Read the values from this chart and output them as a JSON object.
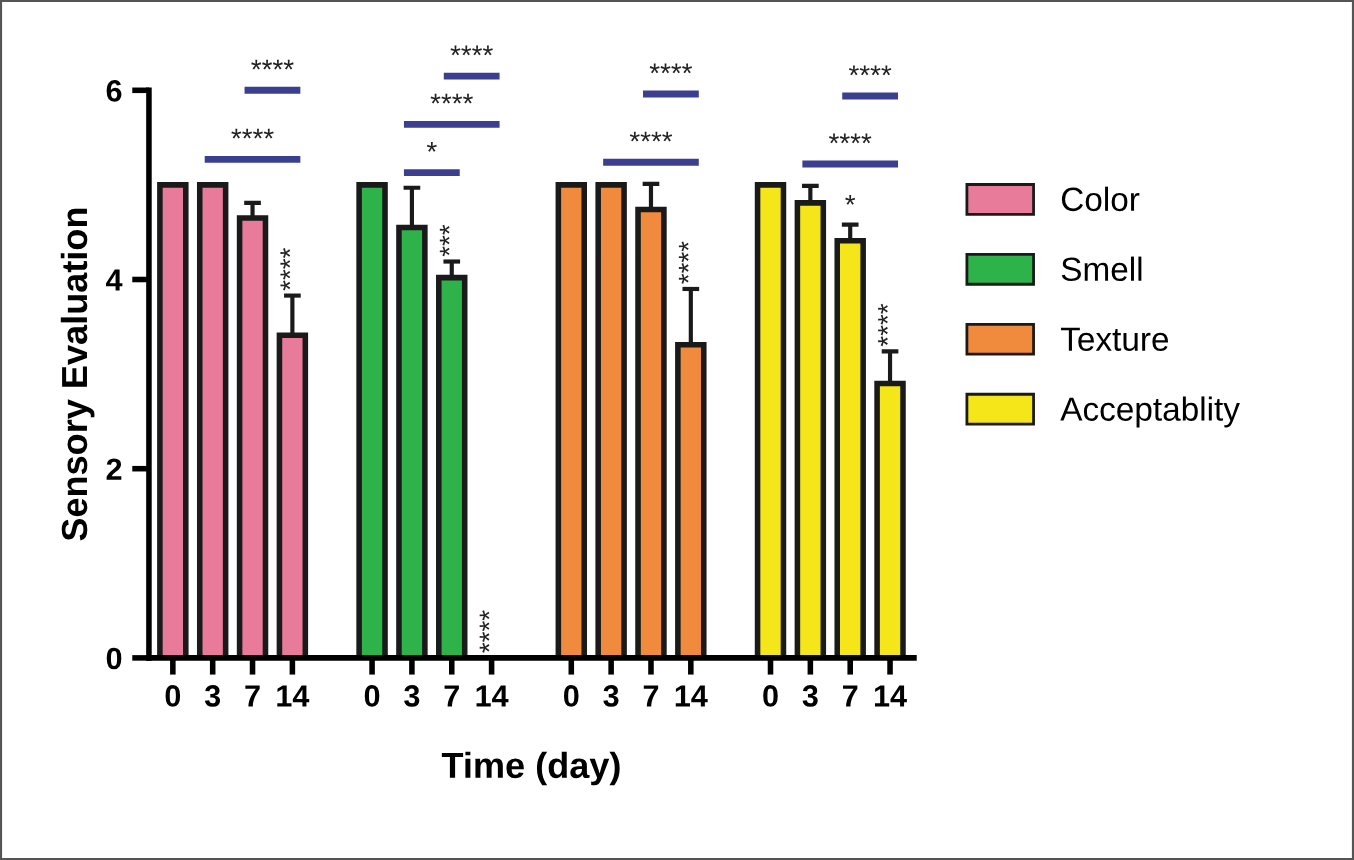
{
  "chart_data": {
    "type": "bar",
    "xlabel": "Time (day)",
    "ylabel": "Sensory Evaluation",
    "categories": [
      "0",
      "3",
      "7",
      "14",
      null,
      "0",
      "3",
      "7",
      "14",
      null,
      "0",
      "3",
      "7",
      "14",
      null,
      "0",
      "3",
      "7",
      "14"
    ],
    "series": [
      {
        "name": "Color",
        "color": "#e87a9a",
        "values": [
          5,
          5,
          4.65,
          3.41,
          null,
          null,
          null,
          null,
          null,
          null,
          null,
          null,
          null,
          null,
          null,
          null,
          null,
          null,
          null
        ],
        "errors": [
          null,
          null,
          0.16,
          0.42,
          null,
          null,
          null,
          null,
          null,
          null,
          null,
          null,
          null,
          null,
          null,
          null,
          null,
          null,
          null
        ],
        "value_labels": [
          null,
          null,
          null,
          "****",
          null,
          null,
          null,
          null,
          null,
          null,
          null,
          null,
          null,
          null,
          null,
          null,
          null,
          null,
          null
        ]
      },
      {
        "name": "Smell",
        "color": "#2db34a",
        "values": [
          null,
          null,
          null,
          null,
          null,
          5,
          4.55,
          4.02,
          0,
          null,
          null,
          null,
          null,
          null,
          null,
          null,
          null,
          null,
          null
        ],
        "errors": [
          null,
          null,
          null,
          null,
          null,
          null,
          0.42,
          0.17,
          null,
          null,
          null,
          null,
          null,
          null,
          null,
          null,
          null,
          null,
          null
        ],
        "value_labels": [
          null,
          null,
          null,
          null,
          null,
          null,
          null,
          "***",
          "****",
          null,
          null,
          null,
          null,
          null,
          null,
          null,
          null,
          null,
          null
        ]
      },
      {
        "name": "Texture",
        "color": "#f08a3c",
        "values": [
          null,
          null,
          null,
          null,
          null,
          null,
          null,
          null,
          null,
          null,
          5,
          5,
          4.74,
          3.31,
          null,
          null,
          null,
          null,
          null
        ],
        "errors": [
          null,
          null,
          null,
          null,
          null,
          null,
          null,
          null,
          null,
          null,
          null,
          null,
          0.27,
          0.59,
          null,
          null,
          null,
          null,
          null
        ],
        "value_labels": [
          null,
          null,
          null,
          null,
          null,
          null,
          null,
          null,
          null,
          null,
          null,
          null,
          null,
          "****",
          null,
          null,
          null,
          null,
          null
        ]
      },
      {
        "name": "Acceptablity",
        "color": "#f5e61a",
        "values": [
          null,
          null,
          null,
          null,
          null,
          null,
          null,
          null,
          null,
          null,
          null,
          null,
          null,
          null,
          null,
          5,
          4.81,
          4.41,
          2.9
        ],
        "errors": [
          null,
          null,
          null,
          null,
          null,
          null,
          null,
          null,
          null,
          null,
          null,
          null,
          null,
          null,
          null,
          null,
          0.18,
          0.17,
          0.34
        ],
        "value_labels": [
          null,
          null,
          null,
          null,
          null,
          null,
          null,
          null,
          null,
          null,
          null,
          null,
          null,
          null,
          null,
          null,
          null,
          "*",
          "****"
        ]
      }
    ],
    "annotations": [
      "****",
      "****",
      "*",
      "****",
      "****",
      "****",
      "****",
      "****",
      "****"
    ],
    "ylim": [
      0,
      6
    ],
    "yticks": [
      0,
      2,
      4,
      6
    ],
    "grid": false,
    "legend": "right"
  }
}
